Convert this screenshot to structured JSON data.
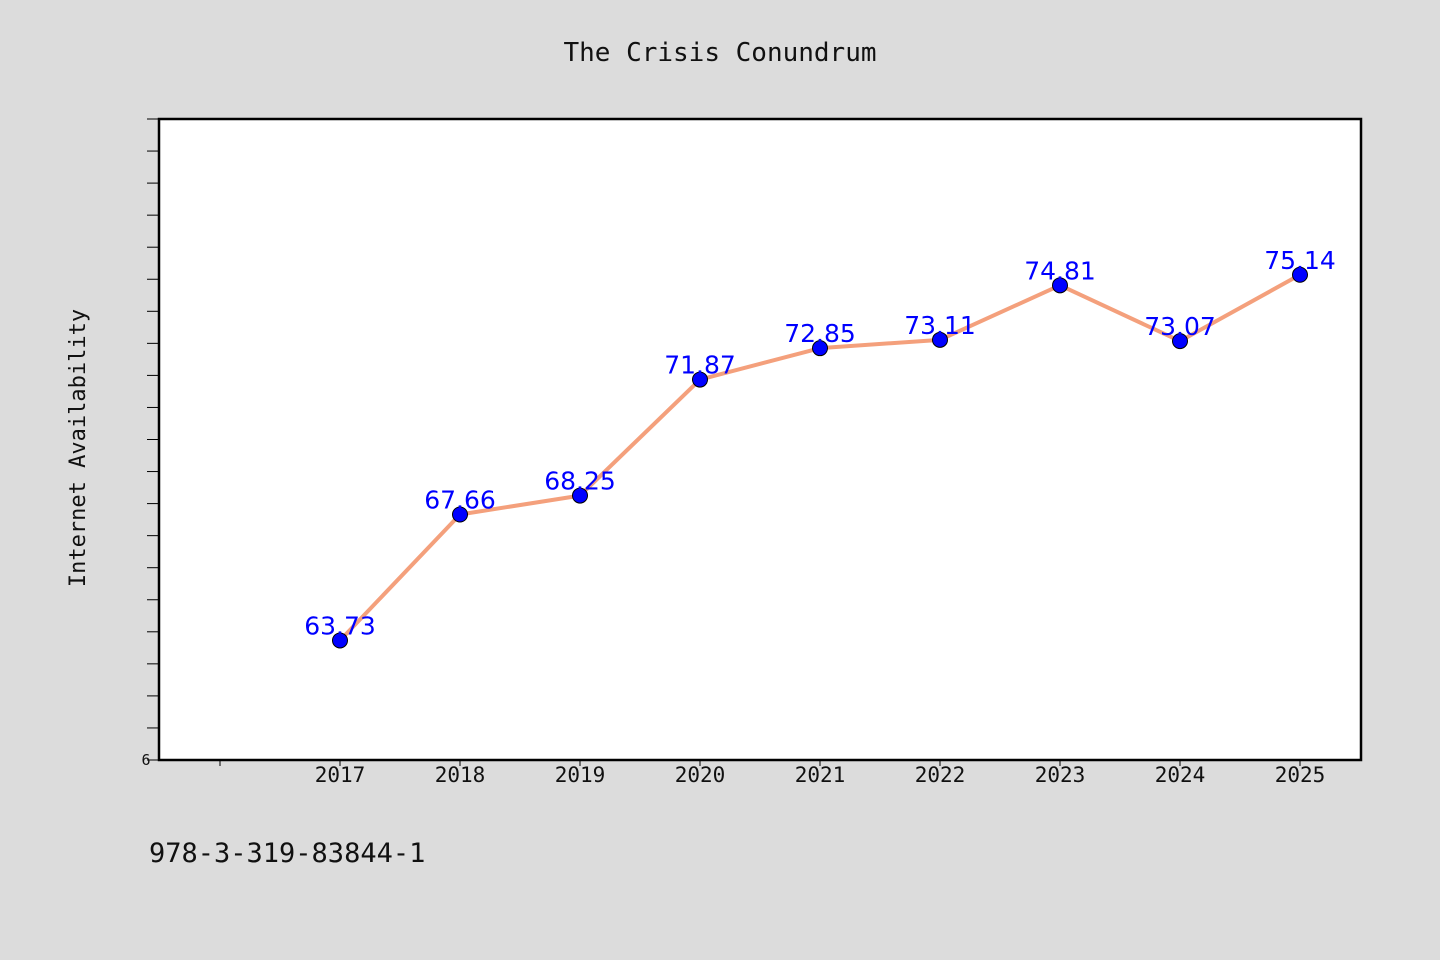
{
  "chart_data": {
    "type": "line",
    "title": "The Crisis Conundrum",
    "xlabel": "",
    "ylabel": "Internet Availability",
    "categories": [
      "2017",
      "2018",
      "2019",
      "2020",
      "2021",
      "2022",
      "2023",
      "2024",
      "2025"
    ],
    "series": [
      {
        "values": [
          63.73,
          67.66,
          68.25,
          71.87,
          72.85,
          73.11,
          74.81,
          73.07,
          75.14
        ]
      }
    ],
    "data_labels": [
      "63.73",
      "67.66",
      "68.25",
      "71.87",
      "72.85",
      "73.11",
      "74.81",
      "73.07",
      "75.14"
    ],
    "ylim": [
      60,
      80
    ],
    "y_tick_label": "6",
    "grid": false,
    "line_color": "#f4a07c",
    "marker_color": "#0000ff",
    "label_color": "#0000ff",
    "background_color": "#dcdcdc",
    "plot_background": "#ffffff"
  },
  "footer": {
    "isbn": "978-3-319-83844-1"
  }
}
